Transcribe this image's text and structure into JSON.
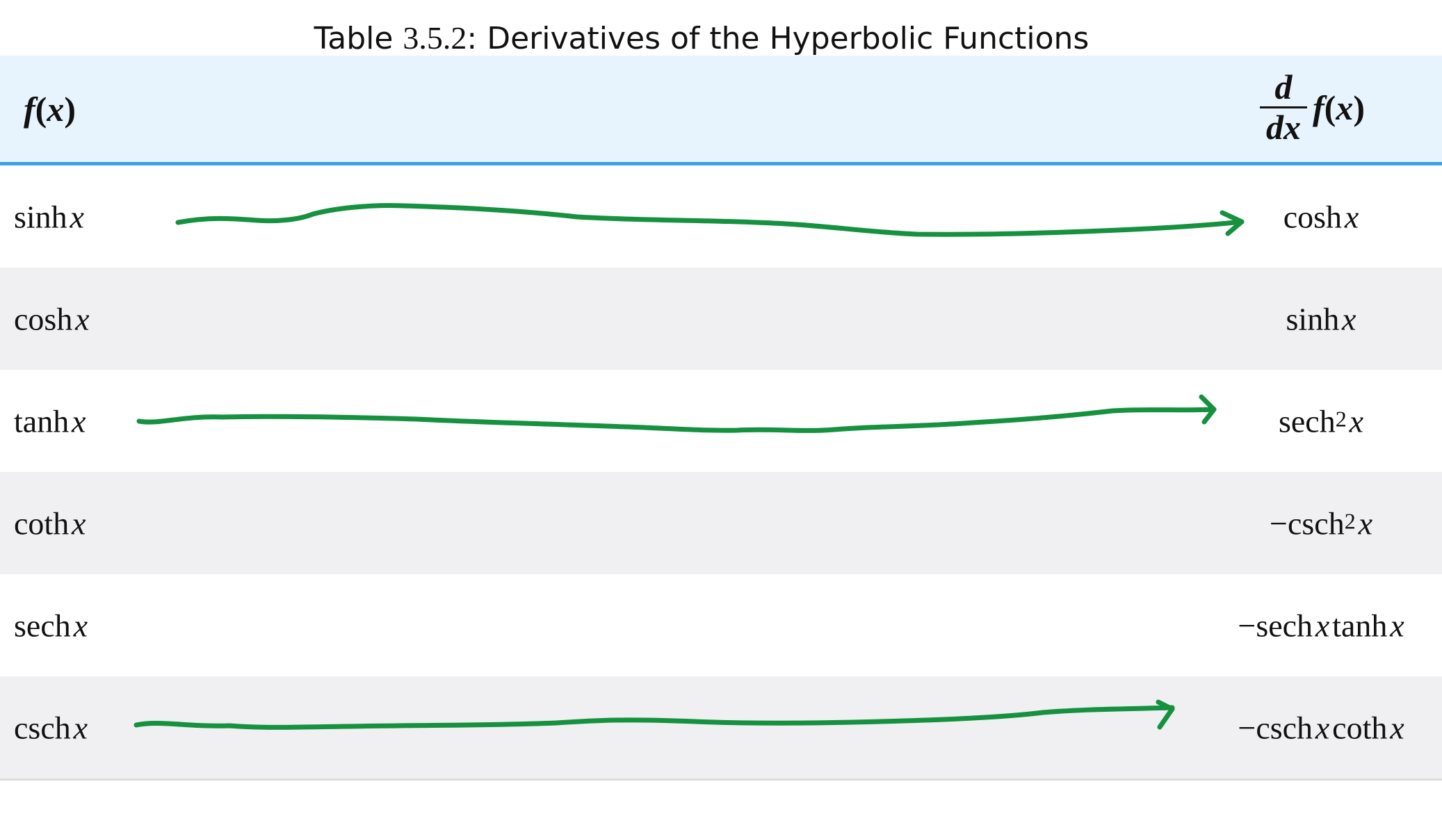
{
  "caption": {
    "prefix": "Table ",
    "number": "3.5.2",
    "title": ": Derivatives of the Hyperbolic Functions"
  },
  "header": {
    "left": {
      "f": "f",
      "open": "(",
      "x": "x",
      "close": ")"
    },
    "right": {
      "num": "d",
      "den_d": "d",
      "den_x": "x",
      "f": "f",
      "open": "(",
      "x": "x",
      "close": ")"
    }
  },
  "rows": [
    {
      "fn": "sinh",
      "var": "x",
      "deriv_fn": "cosh",
      "deriv_var": "x",
      "deriv_sup": "",
      "deriv_prefix": "",
      "deriv_mid": "",
      "deriv_var2": ""
    },
    {
      "fn": "cosh",
      "var": "x",
      "deriv_fn": "sinh",
      "deriv_var": "x",
      "deriv_sup": "",
      "deriv_prefix": "",
      "deriv_mid": "",
      "deriv_var2": ""
    },
    {
      "fn": "tanh",
      "var": "x",
      "deriv_fn": "sech",
      "deriv_var": "x",
      "deriv_sup": "2",
      "deriv_prefix": "",
      "deriv_mid": "",
      "deriv_var2": ""
    },
    {
      "fn": "coth",
      "var": "x",
      "deriv_fn": "csch",
      "deriv_var": "x",
      "deriv_sup": "2",
      "deriv_prefix": "−",
      "deriv_mid": "",
      "deriv_var2": ""
    },
    {
      "fn": "sech",
      "var": "x",
      "deriv_fn": "sech",
      "deriv_var": "x",
      "deriv_sup": "",
      "deriv_prefix": "−",
      "deriv_mid": "tanh",
      "deriv_var2": "x"
    },
    {
      "fn": "csch",
      "var": "x",
      "deriv_fn": "csch",
      "deriv_var": "x",
      "deriv_sup": "",
      "deriv_prefix": "−",
      "deriv_mid": "coth",
      "deriv_var2": "x"
    }
  ],
  "annotations": {
    "color": "#15913f",
    "arrow_rows": [
      "sinh",
      "tanh",
      "csch"
    ]
  }
}
